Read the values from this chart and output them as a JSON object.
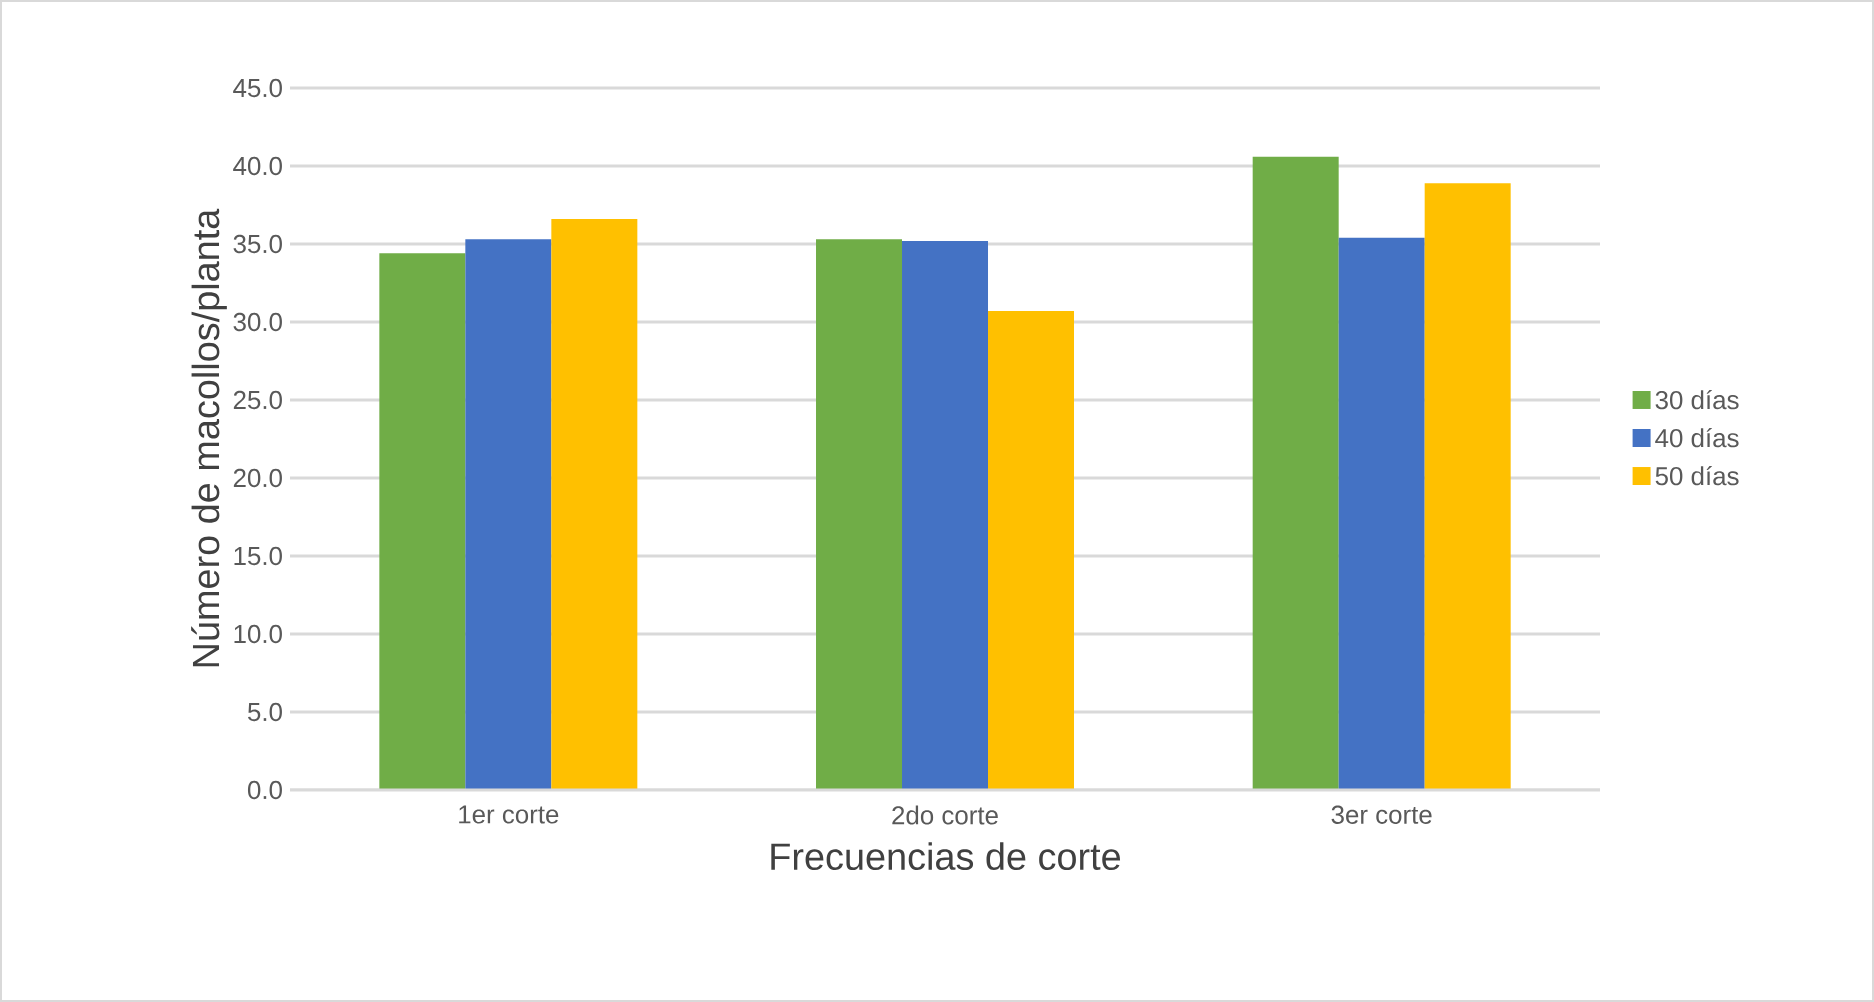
{
  "chart_data": {
    "type": "bar",
    "xlabel": "Frecuencias de corte",
    "ylabel": "Número de macollos/planta",
    "categories": [
      "1er corte",
      "2do corte",
      "3er corte"
    ],
    "series": [
      {
        "name": "30 días",
        "color": "#70ad47",
        "values": [
          34.4,
          35.3,
          40.6
        ]
      },
      {
        "name": "40 días",
        "color": "#4472c4",
        "values": [
          35.3,
          35.2,
          35.4
        ]
      },
      {
        "name": "50 días",
        "color": "#ffc000",
        "values": [
          36.6,
          30.7,
          38.9
        ]
      }
    ],
    "ylim": [
      0,
      45
    ],
    "yticks": [
      {
        "value": 0,
        "label": "0.0"
      },
      {
        "value": 5,
        "label": "5.0"
      },
      {
        "value": 10,
        "label": "10.0"
      },
      {
        "value": 15,
        "label": "15.0"
      },
      {
        "value": 20,
        "label": "20.0"
      },
      {
        "value": 25,
        "label": "25.0"
      },
      {
        "value": 30,
        "label": "30.0"
      },
      {
        "value": 35,
        "label": "35.0"
      },
      {
        "value": 40,
        "label": "40.0"
      },
      {
        "value": 45,
        "label": "45.0"
      }
    ],
    "grid": "y",
    "legend": "right"
  }
}
